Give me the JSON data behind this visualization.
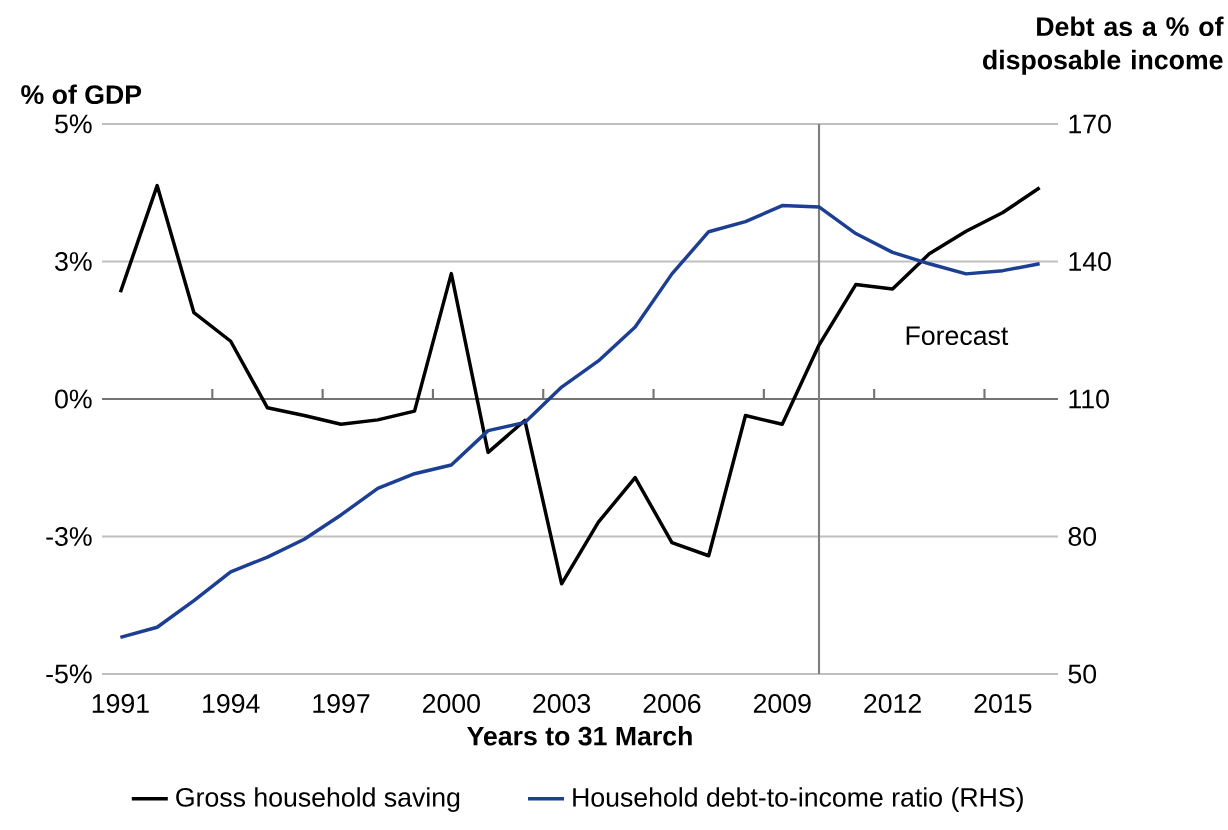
{
  "chart_data": {
    "type": "line",
    "xlabel": "Years to 31 March",
    "ylabel": "% of GDP",
    "y2label": "Debt as a % of disposable income",
    "x": [
      1991,
      1992,
      1993,
      1994,
      1995,
      1996,
      1997,
      1998,
      1999,
      2000,
      2001,
      2002,
      2003,
      2004,
      2005,
      2006,
      2007,
      2008,
      2009,
      2010,
      2011,
      2012,
      2013,
      2014,
      2015,
      2016
    ],
    "series": [
      {
        "name": "Gross household saving",
        "color": "#000000",
        "values": [
          1.94,
          3.88,
          1.57,
          1.05,
          -0.16,
          -0.3,
          -0.46,
          -0.38,
          -0.22,
          2.28,
          -0.97,
          -0.39,
          -3.36,
          -2.24,
          -1.43,
          -2.61,
          -2.85,
          -0.3,
          -0.46,
          0.98,
          2.08,
          2.0,
          2.64,
          3.05,
          3.39,
          3.84
        ]
      },
      {
        "name": "Household debt-to-income ratio (RHS)",
        "color": "#1c3f94",
        "axis": "y2",
        "values": [
          58.0,
          60.2,
          66.0,
          72.3,
          75.5,
          79.4,
          84.7,
          90.5,
          93.7,
          95.6,
          103.1,
          104.9,
          112.6,
          118.3,
          125.7,
          137.3,
          146.5,
          148.7,
          152.2,
          151.9,
          146.1,
          142.0,
          139.5,
          137.3,
          138.0,
          139.5
        ]
      }
    ],
    "xlim": [
      1990.5,
      2016.5
    ],
    "xticks": [
      1991,
      {
        "value": 1993.5,
        "label": null
      },
      1994,
      {
        "value": 1996.5,
        "label": null
      },
      1997,
      {
        "value": 1999.5,
        "label": null
      },
      2000,
      {
        "value": 2002.5,
        "label": null
      },
      2003,
      {
        "value": 2005.5,
        "label": null
      },
      2006,
      {
        "value": 2008.5,
        "label": null
      },
      2009,
      {
        "value": 2011.5,
        "label": null
      },
      2012,
      {
        "value": 2014.5,
        "label": null
      },
      2015
    ],
    "ylim": [
      -5,
      5
    ],
    "yticks": [
      {
        "value": -5,
        "label": "-5%"
      },
      {
        "value": -2.5,
        "label": "-3%"
      },
      {
        "value": 0,
        "label": "0%"
      },
      {
        "value": 2.5,
        "label": "3%"
      },
      {
        "value": 5,
        "label": "5%"
      }
    ],
    "y2lim": [
      50,
      170
    ],
    "y2ticks": [
      50,
      80,
      110,
      140,
      170
    ],
    "ref_lines": [
      {
        "axis": "x",
        "value": 2010,
        "color": "#808080"
      }
    ],
    "annotations": [
      "Forecast"
    ],
    "grid": "y",
    "legend": "bottom",
    "line_style": "solid"
  }
}
